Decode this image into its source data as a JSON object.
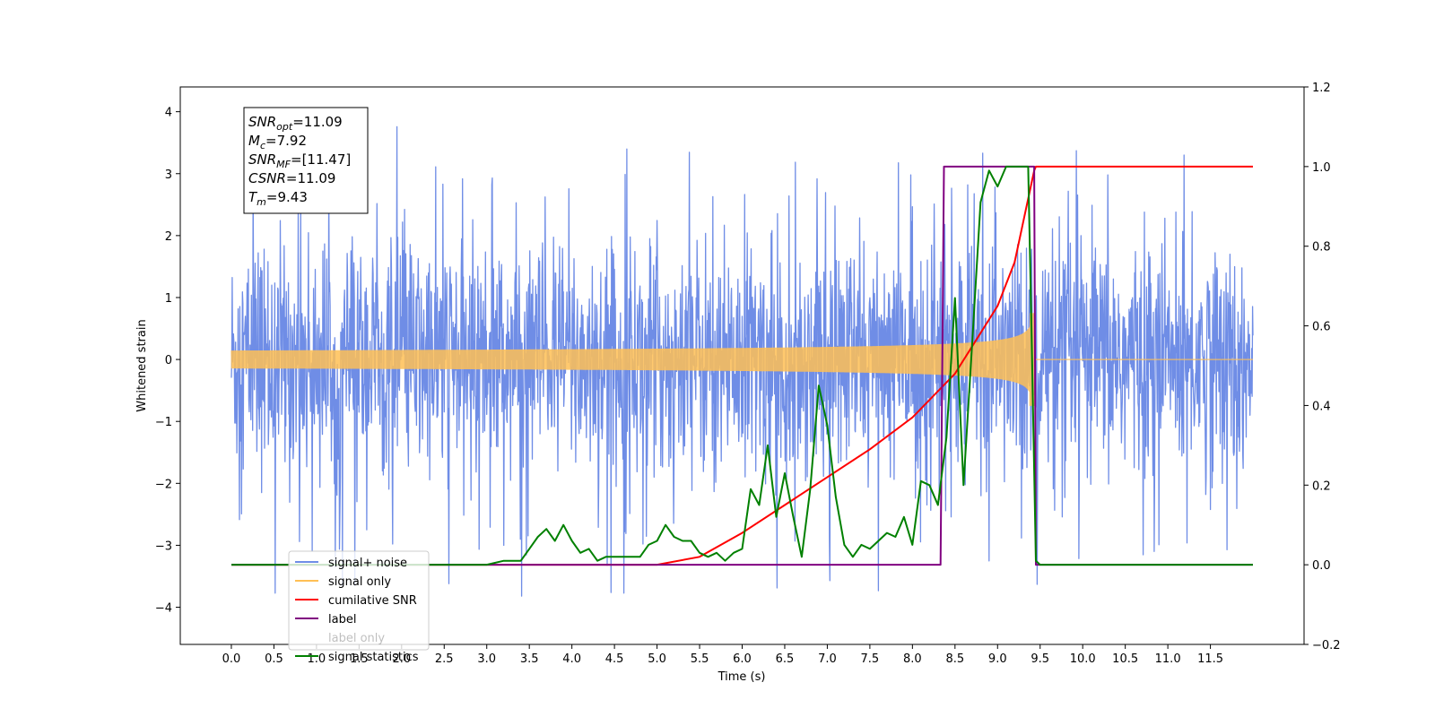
{
  "chart_data": {
    "type": "line",
    "xlabel": "Time (s)",
    "ylabel": "Whitened strain",
    "xlim": [
      -0.6,
      12.6
    ],
    "ylim": [
      -4.6,
      4.4
    ],
    "y2lim": [
      -0.2,
      1.2
    ],
    "x_ticks": [
      0.0,
      0.5,
      1.0,
      1.5,
      2.0,
      2.5,
      3.0,
      3.5,
      4.0,
      4.5,
      5.0,
      5.5,
      6.0,
      6.5,
      7.0,
      7.5,
      8.0,
      8.5,
      9.0,
      9.5,
      10.0,
      10.5,
      11.0,
      11.5
    ],
    "x_tick_labels": [
      "0.0",
      "0.5",
      "1.0",
      "1.5",
      "2.0",
      "2.5",
      "3.0",
      "3.5",
      "4.0",
      "4.5",
      "5.0",
      "5.5",
      "6.0",
      "6.5",
      "7.0",
      "7.5",
      "8.0",
      "8.5",
      "9.0",
      "9.5",
      "10.0",
      "10.5",
      "11.0",
      "11.5"
    ],
    "y_ticks": [
      -4,
      -3,
      -2,
      -1,
      0,
      1,
      2,
      3,
      4
    ],
    "y_tick_labels": [
      "−4",
      "−3",
      "−2",
      "−1",
      "0",
      "1",
      "2",
      "3",
      "4"
    ],
    "y2_ticks": [
      -0.2,
      0.0,
      0.2,
      0.4,
      0.6,
      0.8,
      1.0,
      1.2
    ],
    "y2_tick_labels": [
      "−0.2",
      "0.0",
      "0.2",
      "0.4",
      "0.6",
      "0.8",
      "1.0",
      "1.2"
    ],
    "grid": false,
    "legend_position": "lower-left",
    "stats": [
      {
        "base": "SNR",
        "sub": "opt",
        "value": "=11.09"
      },
      {
        "base": "M",
        "sub": "c",
        "value": "=7.92"
      },
      {
        "base": "SNR",
        "sub": "MF",
        "value": "=[11.47]"
      },
      {
        "base": "CSNR",
        "sub": "",
        "value": "=11.09"
      },
      {
        "base": "T",
        "sub": "m",
        "value": "=9.43"
      }
    ],
    "series": [
      {
        "name": "signal+ noise",
        "axis": "left",
        "color": "#6f8de6",
        "kind": "noise",
        "x_range": [
          0.0,
          12.0
        ],
        "envelope": [
          -2.5,
          2.5
        ],
        "spike_max": 4.0,
        "spike_min": -4.1
      },
      {
        "name": "signal only",
        "axis": "left",
        "color": "#ffbf55",
        "kind": "chirp",
        "x_range": [
          0.0,
          12.0
        ],
        "merger_time": 9.43,
        "peak_amplitude": 0.75
      },
      {
        "name": "cumilative SNR",
        "axis": "right",
        "color": "#ff0000",
        "x": [
          0.0,
          5.0,
          5.5,
          6.0,
          6.5,
          7.0,
          7.5,
          8.0,
          8.5,
          9.0,
          9.2,
          9.43,
          9.45,
          12.0
        ],
        "y": [
          0.0,
          0.0,
          0.02,
          0.08,
          0.15,
          0.22,
          0.29,
          0.37,
          0.48,
          0.65,
          0.76,
          0.99,
          1.0,
          1.0
        ]
      },
      {
        "name": "label",
        "axis": "right",
        "color": "#800080",
        "x": [
          0.0,
          8.33,
          8.37,
          9.43,
          9.45,
          12.0
        ],
        "y": [
          0.0,
          0.0,
          1.0,
          1.0,
          0.0,
          0.0
        ]
      },
      {
        "name": "label only",
        "axis": "right",
        "color": "#800080",
        "hidden": true
      },
      {
        "name": "signal statistics",
        "axis": "right",
        "color": "#008000",
        "x": [
          0.0,
          3.0,
          3.2,
          3.4,
          3.5,
          3.6,
          3.7,
          3.8,
          3.9,
          4.0,
          4.1,
          4.2,
          4.3,
          4.4,
          4.5,
          4.6,
          4.7,
          4.8,
          4.9,
          5.0,
          5.1,
          5.2,
          5.3,
          5.4,
          5.5,
          5.6,
          5.7,
          5.8,
          5.9,
          6.0,
          6.1,
          6.2,
          6.3,
          6.4,
          6.5,
          6.6,
          6.7,
          6.8,
          6.9,
          7.0,
          7.1,
          7.2,
          7.3,
          7.4,
          7.5,
          7.6,
          7.7,
          7.8,
          7.9,
          8.0,
          8.1,
          8.2,
          8.3,
          8.4,
          8.5,
          8.6,
          8.7,
          8.8,
          8.9,
          9.0,
          9.1,
          9.2,
          9.3,
          9.36,
          9.4,
          9.45,
          9.5,
          12.0
        ],
        "y": [
          0.0,
          0.0,
          0.01,
          0.01,
          0.04,
          0.07,
          0.09,
          0.06,
          0.1,
          0.06,
          0.03,
          0.04,
          0.01,
          0.02,
          0.02,
          0.02,
          0.02,
          0.02,
          0.05,
          0.06,
          0.1,
          0.07,
          0.06,
          0.06,
          0.03,
          0.02,
          0.03,
          0.01,
          0.03,
          0.04,
          0.19,
          0.15,
          0.3,
          0.12,
          0.23,
          0.12,
          0.02,
          0.19,
          0.45,
          0.35,
          0.17,
          0.05,
          0.02,
          0.05,
          0.04,
          0.06,
          0.08,
          0.07,
          0.12,
          0.05,
          0.21,
          0.2,
          0.15,
          0.32,
          0.67,
          0.2,
          0.55,
          0.91,
          0.99,
          0.95,
          1.0,
          1.0,
          1.0,
          1.0,
          0.58,
          0.01,
          0.0,
          0.0
        ]
      }
    ]
  }
}
